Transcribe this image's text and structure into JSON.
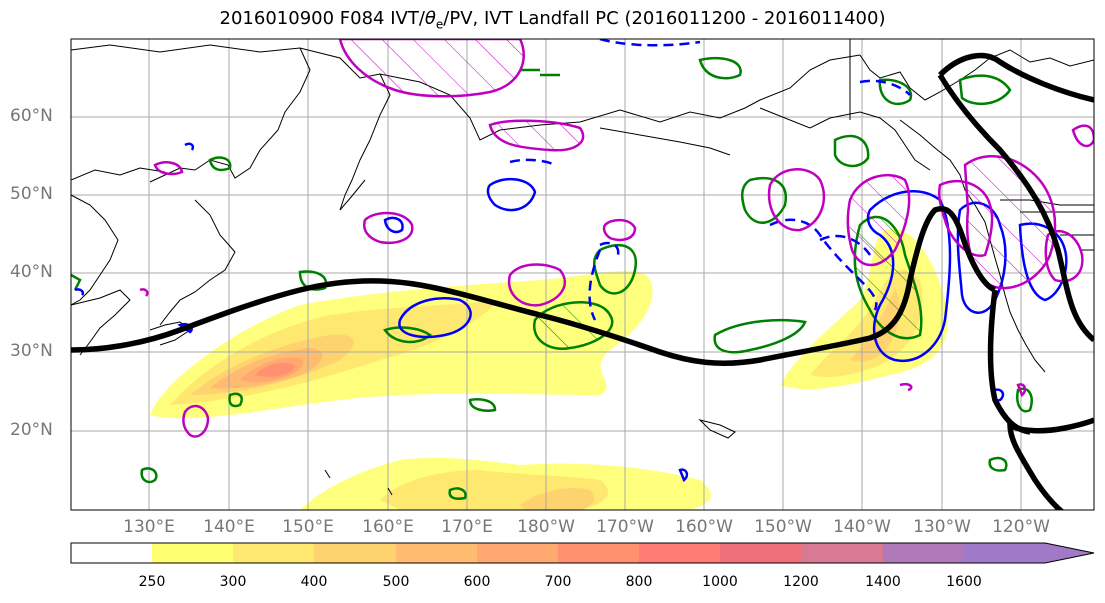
{
  "title": {
    "prefix": "2016010900 F084 IVT/",
    "theta": "θ",
    "theta_sub": "e",
    "suffix": "/PV, IVT Landfall PC (2016011200 - 2016011400)"
  },
  "map": {
    "lat_labels": [
      "60°N",
      "50°N",
      "40°N",
      "30°N",
      "20°N"
    ],
    "lon_labels": [
      "130°E",
      "140°E",
      "150°E",
      "160°E",
      "170°E",
      "180°W",
      "170°W",
      "160°W",
      "150°W",
      "140°W",
      "130°W",
      "120°W"
    ],
    "colors": {
      "pc_line": "#000000",
      "theta_e_contour": "#0000ff",
      "pv_contour": "#c000c0",
      "land_contour": "#008000",
      "coastline": "#000000",
      "grid": "#aaaaaa"
    }
  },
  "colorbar": {
    "ticks": [
      "250",
      "300",
      "400",
      "500",
      "600",
      "700",
      "800",
      "1000",
      "1200",
      "1400",
      "1600"
    ],
    "colors": [
      "#ffff70",
      "#ffe870",
      "#ffd270",
      "#ffbb70",
      "#ffa870",
      "#ff9070",
      "#ff7c74",
      "#f0707a",
      "#d87a94",
      "#b07ab8",
      "#a07ac8"
    ]
  }
}
